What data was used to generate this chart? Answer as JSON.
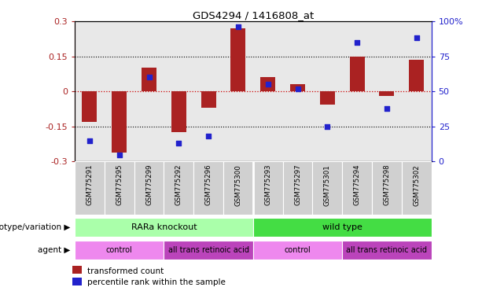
{
  "title": "GDS4294 / 1416808_at",
  "samples": [
    "GSM775291",
    "GSM775295",
    "GSM775299",
    "GSM775292",
    "GSM775296",
    "GSM775300",
    "GSM775293",
    "GSM775297",
    "GSM775301",
    "GSM775294",
    "GSM775298",
    "GSM775302"
  ],
  "bar_values": [
    -0.13,
    -0.26,
    0.1,
    -0.175,
    -0.07,
    0.27,
    0.06,
    0.03,
    -0.055,
    0.15,
    -0.02,
    0.135
  ],
  "dot_values": [
    15,
    5,
    60,
    13,
    18,
    96,
    55,
    52,
    25,
    85,
    38,
    88
  ],
  "ylim_left": [
    -0.3,
    0.3
  ],
  "ylim_right": [
    0,
    100
  ],
  "yticks_left": [
    -0.3,
    -0.15,
    0.0,
    0.15,
    0.3
  ],
  "yticks_right": [
    0,
    25,
    50,
    75,
    100
  ],
  "ytick_labels_left": [
    "-0.3",
    "-0.15",
    "0",
    "0.15",
    "0.3"
  ],
  "ytick_labels_right": [
    "0",
    "25",
    "50",
    "75",
    "100%"
  ],
  "bar_color": "#AA2222",
  "dot_color": "#2222CC",
  "hline_color": "#CC0000",
  "dotted_line_color": "#000000",
  "bg_color": "#FFFFFF",
  "plot_bg_color": "#E8E8E8",
  "sample_box_color": "#D0D0D0",
  "genotype_groups": [
    {
      "label": "RARa knockout",
      "start": 0,
      "end": 6,
      "color": "#AAFFAA"
    },
    {
      "label": "wild type",
      "start": 6,
      "end": 12,
      "color": "#44DD44"
    }
  ],
  "agent_groups": [
    {
      "label": "control",
      "start": 0,
      "end": 3,
      "color": "#EE88EE"
    },
    {
      "label": "all trans retinoic acid",
      "start": 3,
      "end": 6,
      "color": "#BB44BB"
    },
    {
      "label": "control",
      "start": 6,
      "end": 9,
      "color": "#EE88EE"
    },
    {
      "label": "all trans retinoic acid",
      "start": 9,
      "end": 12,
      "color": "#BB44BB"
    }
  ],
  "legend_items": [
    {
      "label": "transformed count",
      "color": "#AA2222"
    },
    {
      "label": "percentile rank within the sample",
      "color": "#2222CC"
    }
  ],
  "genotype_label": "genotype/variation",
  "agent_label": "agent"
}
